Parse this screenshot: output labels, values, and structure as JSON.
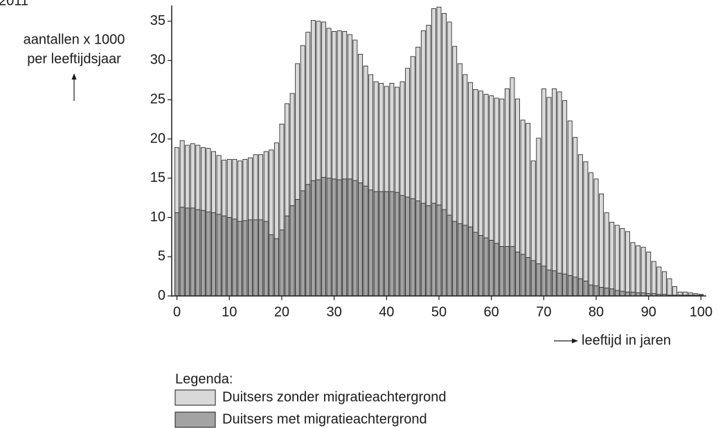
{
  "chart_data": {
    "type": "bar",
    "mode": "overlap",
    "corner_label": "2011",
    "y_label_lines": [
      "aantallen x 1000",
      "per leeftijdsjaar"
    ],
    "x_label": "leeftijd in jaren",
    "legend_title": "Legenda:",
    "x": [
      0,
      1,
      2,
      3,
      4,
      5,
      6,
      7,
      8,
      9,
      10,
      11,
      12,
      13,
      14,
      15,
      16,
      17,
      18,
      19,
      20,
      21,
      22,
      23,
      24,
      25,
      26,
      27,
      28,
      29,
      30,
      31,
      32,
      33,
      34,
      35,
      36,
      37,
      38,
      39,
      40,
      41,
      42,
      43,
      44,
      45,
      46,
      47,
      48,
      49,
      50,
      51,
      52,
      53,
      54,
      55,
      56,
      57,
      58,
      59,
      60,
      61,
      62,
      63,
      64,
      65,
      66,
      67,
      68,
      69,
      70,
      71,
      72,
      73,
      74,
      75,
      76,
      77,
      78,
      79,
      80,
      81,
      82,
      83,
      84,
      85,
      86,
      87,
      88,
      89,
      90,
      91,
      92,
      93,
      94,
      95,
      96,
      97,
      98,
      99,
      100
    ],
    "series": [
      {
        "name": "Duitsers zonder migratieachtergrond",
        "color": "#d9d9d9",
        "values": [
          18.9,
          19.8,
          19.2,
          19.4,
          19.2,
          18.9,
          18.8,
          18.4,
          17.9,
          17.3,
          17.4,
          17.4,
          17.2,
          17.4,
          17.6,
          18.0,
          18.0,
          18.4,
          18.6,
          19.5,
          21.9,
          24.5,
          25.8,
          29.6,
          31.9,
          33.6,
          35.1,
          35.0,
          34.9,
          34.1,
          33.7,
          33.8,
          33.7,
          33.3,
          32.6,
          30.8,
          29.3,
          28.2,
          27.3,
          27.1,
          26.7,
          27.1,
          26.6,
          27.3,
          29.0,
          30.5,
          31.7,
          33.8,
          34.5,
          36.6,
          36.8,
          36.0,
          34.9,
          31.8,
          29.6,
          28.2,
          27.2,
          26.3,
          26.1,
          25.7,
          25.5,
          25.2,
          25.1,
          26.4,
          27.8,
          25.1,
          22.4,
          22.0,
          17.2,
          20.1,
          26.4,
          25.3,
          26.4,
          26.0,
          24.9,
          22.3,
          20.2,
          18.0,
          17.1,
          15.7,
          14.9,
          13.0,
          10.6,
          9.4,
          9.0,
          8.6,
          8.2,
          6.8,
          6.4,
          6.2,
          5.6,
          4.4,
          3.7,
          3.1,
          2.2,
          1.2,
          0.5,
          0.5,
          0.4,
          0.3,
          0.2
        ]
      },
      {
        "name": "Duitsers met migratieachtergrond",
        "color": "#a3a3a3",
        "values": [
          10.6,
          11.3,
          11.2,
          11.2,
          11.0,
          10.9,
          10.7,
          10.6,
          10.4,
          10.2,
          10.0,
          9.8,
          9.5,
          9.6,
          9.7,
          9.7,
          9.7,
          9.5,
          7.8,
          7.3,
          8.4,
          10.2,
          11.5,
          12.3,
          13.4,
          14.2,
          14.7,
          14.8,
          15.1,
          15.0,
          14.9,
          14.8,
          14.9,
          14.9,
          14.7,
          14.4,
          14.0,
          13.5,
          13.3,
          13.3,
          13.3,
          13.3,
          13.2,
          12.8,
          12.6,
          12.4,
          12.1,
          11.8,
          11.5,
          11.8,
          11.6,
          11.0,
          10.3,
          9.5,
          9.2,
          9.0,
          8.8,
          8.1,
          7.7,
          7.4,
          7.1,
          6.7,
          6.3,
          6.3,
          6.3,
          5.6,
          5.3,
          4.9,
          4.5,
          4.1,
          3.8,
          3.3,
          3.2,
          2.9,
          2.8,
          2.6,
          2.4,
          2.2,
          1.9,
          1.4,
          1.3,
          1.1,
          1.0,
          0.9,
          0.7,
          0.6,
          0.5,
          0.5,
          0.4,
          0.4,
          0.3,
          0.3,
          0.2,
          0.2,
          0.1,
          0.1,
          0.1,
          0.1,
          0.1,
          0.1,
          0.1
        ]
      }
    ],
    "xlim": [
      -1,
      101
    ],
    "xticks": [
      0,
      10,
      20,
      30,
      40,
      50,
      60,
      70,
      80,
      90,
      100
    ],
    "ylim": [
      0,
      37
    ],
    "yticks": [
      0,
      5,
      10,
      15,
      20,
      25,
      30,
      35
    ],
    "grid": false
  }
}
